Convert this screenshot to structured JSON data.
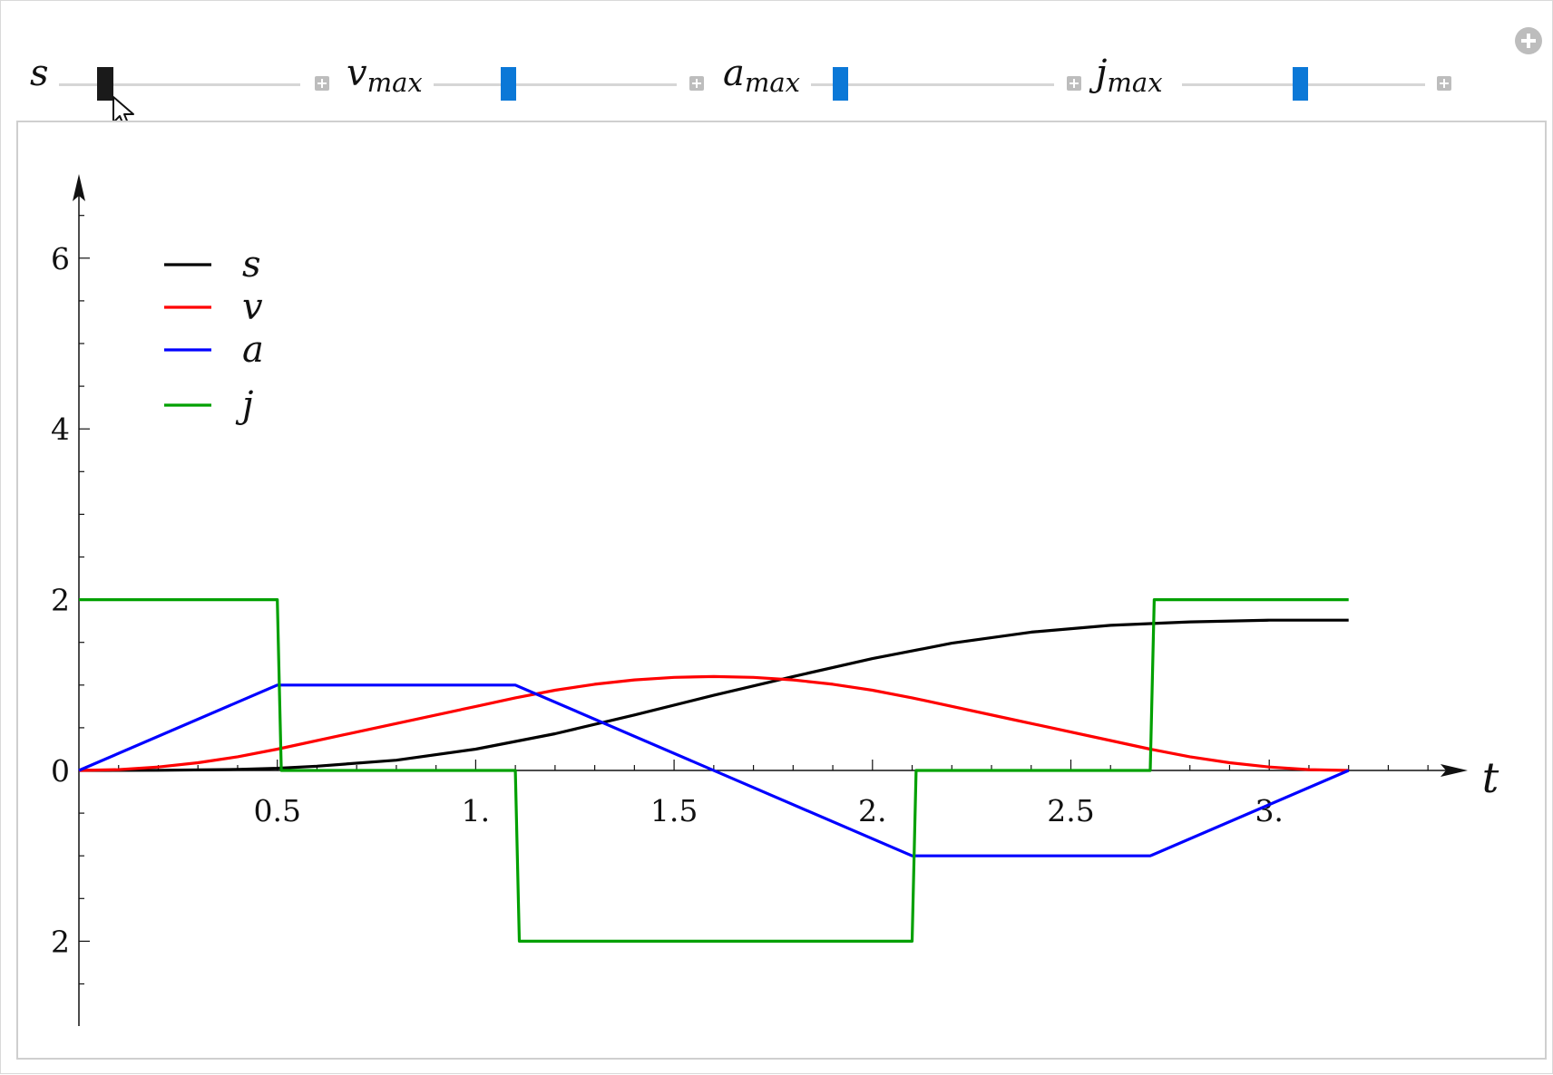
{
  "controls": {
    "sliders": [
      {
        "name": "s",
        "symbol": "s",
        "subscript": "",
        "value_fraction": 0.2
      },
      {
        "name": "vmax",
        "symbol": "v",
        "subscript": "max",
        "value_fraction": 0.28
      },
      {
        "name": "amax",
        "symbol": "a",
        "subscript": "max",
        "value_fraction": 0.13
      },
      {
        "name": "jmax",
        "symbol": "j",
        "subscript": "max",
        "value_fraction": 0.47
      }
    ],
    "plus_icon": "plus-square-icon",
    "options_icon": "plus-circle-icon",
    "cursor_icon": "mouse-pointer-icon"
  },
  "chart_data": {
    "type": "line",
    "xlabel": "t",
    "ylabel": "",
    "xlim": [
      0,
      3.5
    ],
    "ylim": [
      -2.9,
      6.9
    ],
    "x_ticks": [
      {
        "value": 0.5,
        "label": "0.5"
      },
      {
        "value": 1.0,
        "label": "1."
      },
      {
        "value": 1.5,
        "label": "1.5"
      },
      {
        "value": 2.0,
        "label": "2."
      },
      {
        "value": 2.5,
        "label": "2.5"
      },
      {
        "value": 3.0,
        "label": "3."
      }
    ],
    "y_ticks": [
      {
        "value": 6,
        "label": "6"
      },
      {
        "value": 4,
        "label": "4"
      },
      {
        "value": 2,
        "label": "2"
      },
      {
        "value": 0,
        "label": "0"
      },
      {
        "value": -2,
        "label": "2"
      }
    ],
    "y_minor_step": 0.5,
    "legend_position": "top-left",
    "grid": false,
    "series": [
      {
        "name": "s",
        "color": "#000000",
        "x": [
          0,
          0.2,
          0.4,
          0.5,
          0.6,
          0.8,
          1.0,
          1.2,
          1.4,
          1.6,
          1.8,
          2.0,
          2.2,
          2.4,
          2.6,
          2.8,
          3.0,
          3.2
        ],
        "y": [
          0,
          0.002,
          0.012,
          0.025,
          0.05,
          0.12,
          0.25,
          0.43,
          0.65,
          0.88,
          1.1,
          1.31,
          1.49,
          1.62,
          1.7,
          1.74,
          1.76,
          1.76
        ]
      },
      {
        "name": "v",
        "color": "#ff0000",
        "x": [
          0,
          0.1,
          0.2,
          0.3,
          0.4,
          0.5,
          0.75,
          1.0,
          1.1,
          1.2,
          1.3,
          1.4,
          1.5,
          1.6,
          1.7,
          1.8,
          1.9,
          2.0,
          2.1,
          2.35,
          2.6,
          2.7,
          2.8,
          2.9,
          3.0,
          3.1,
          3.2
        ],
        "y": [
          0,
          0.01,
          0.04,
          0.09,
          0.16,
          0.25,
          0.5,
          0.75,
          0.85,
          0.94,
          1.01,
          1.06,
          1.09,
          1.1,
          1.09,
          1.06,
          1.01,
          0.94,
          0.85,
          0.6,
          0.35,
          0.25,
          0.16,
          0.09,
          0.04,
          0.01,
          0
        ]
      },
      {
        "name": "a",
        "color": "#0000ff",
        "x": [
          0,
          0.5,
          1.1,
          2.1,
          2.7,
          3.2
        ],
        "y": [
          0,
          1,
          1,
          -1,
          -1,
          0
        ]
      },
      {
        "name": "j",
        "color": "#00a000",
        "x": [
          0,
          0.5,
          0.51,
          1.1,
          1.11,
          2.1,
          2.11,
          2.7,
          2.71,
          3.2
        ],
        "y": [
          2,
          2,
          0,
          0,
          -2,
          -2,
          0,
          0,
          2,
          2
        ]
      }
    ]
  }
}
